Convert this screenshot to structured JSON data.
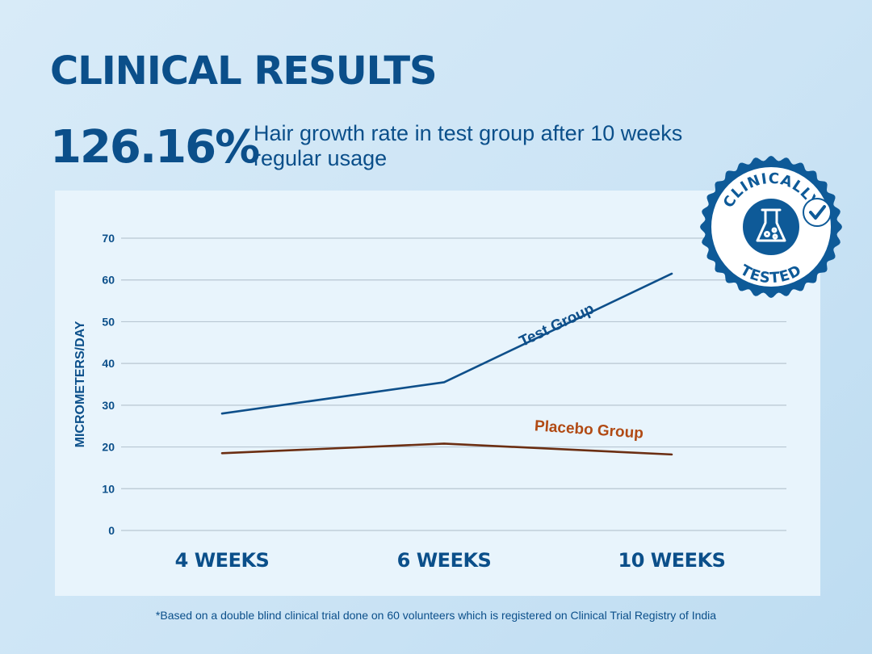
{
  "title": "CLINICAL RESULTS",
  "headline": {
    "value": "126.16%",
    "description": "Hair growth rate in test group after 10 weeks regular usage"
  },
  "footnote": "*Based on a double blind clinical trial done on 60 volunteers which is registered on Clinical Trial Registry of India",
  "badge": {
    "top_text": "CLINICALLY",
    "bottom_text": "TESTED",
    "icon": "flask-icon",
    "check_icon": "checkmark-icon"
  },
  "colors": {
    "primary": "#0b4f8a",
    "test_series": "#0e4f8a",
    "placebo_series": "#6b2e12",
    "placebo_label": "#b14a14",
    "grid": "#b7c6d2",
    "panel": "#e8f4fc"
  },
  "chart_data": {
    "type": "line",
    "categories": [
      "4 WEEKS",
      "6 WEEKS",
      "10 WEEKS"
    ],
    "ylabel": "MICROMETERS/DAY",
    "ylim": [
      0,
      70
    ],
    "yticks": [
      0,
      10,
      20,
      30,
      40,
      50,
      60,
      70
    ],
    "grid": true,
    "series": [
      {
        "name": "Test Group",
        "values": [
          28,
          35.5,
          61.5
        ]
      },
      {
        "name": "Placebo Group",
        "values": [
          18.5,
          20.8,
          18.2
        ]
      }
    ]
  }
}
